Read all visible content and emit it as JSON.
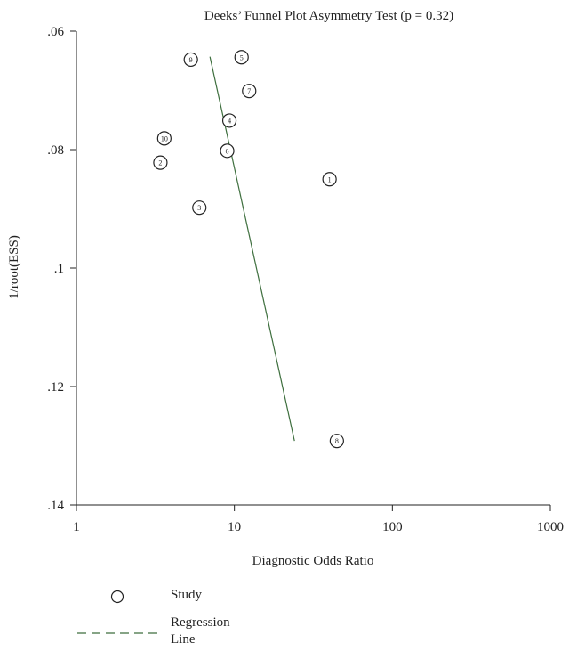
{
  "chart_data": {
    "type": "scatter",
    "title": "Deeks’ Funnel Plot Asymmetry Test (p = 0.32)",
    "xlabel": "Diagnostic Odds Ratio",
    "ylabel": "1/root(ESS)",
    "x_scale": "log",
    "xlim": [
      1,
      1000
    ],
    "x_ticks": [
      {
        "value": 1,
        "label": "1"
      },
      {
        "value": 10,
        "label": "10"
      },
      {
        "value": 100,
        "label": "100"
      },
      {
        "value": 1000,
        "label": "1000"
      }
    ],
    "y_inverted": true,
    "ylim": [
      0.06,
      0.14
    ],
    "y_ticks": [
      {
        "value": 0.06,
        "label": ".06"
      },
      {
        "value": 0.08,
        "label": ".08"
      },
      {
        "value": 0.1,
        "label": ".1"
      },
      {
        "value": 0.12,
        "label": ".12"
      },
      {
        "value": 0.14,
        "label": ".14"
      }
    ],
    "points": [
      {
        "label": "1",
        "x": 40,
        "y": 0.085
      },
      {
        "label": "2",
        "x": 3.4,
        "y": 0.0822
      },
      {
        "label": "3",
        "x": 6,
        "y": 0.0898
      },
      {
        "label": "4",
        "x": 9.3,
        "y": 0.0751
      },
      {
        "label": "5",
        "x": 11.1,
        "y": 0.0644
      },
      {
        "label": "6",
        "x": 9,
        "y": 0.0802
      },
      {
        "label": "7",
        "x": 12.4,
        "y": 0.0701
      },
      {
        "label": "8",
        "x": 44.5,
        "y": 0.1292
      },
      {
        "label": "9",
        "x": 5.3,
        "y": 0.0648
      },
      {
        "label": "10",
        "x": 3.6,
        "y": 0.0781
      }
    ],
    "regression_line": {
      "start": {
        "x": 7,
        "y": 0.0643
      },
      "end": {
        "x": 24,
        "y": 0.1292
      }
    },
    "grid": false,
    "legend": {
      "placement": "bottom-left",
      "items": [
        {
          "label": "Study",
          "symbol": "circle"
        },
        {
          "label": "Regression",
          "label2": "Line",
          "symbol": "dashed-line"
        }
      ]
    },
    "colors": {
      "line": "#3d6e3d",
      "ink": "#222222"
    }
  }
}
